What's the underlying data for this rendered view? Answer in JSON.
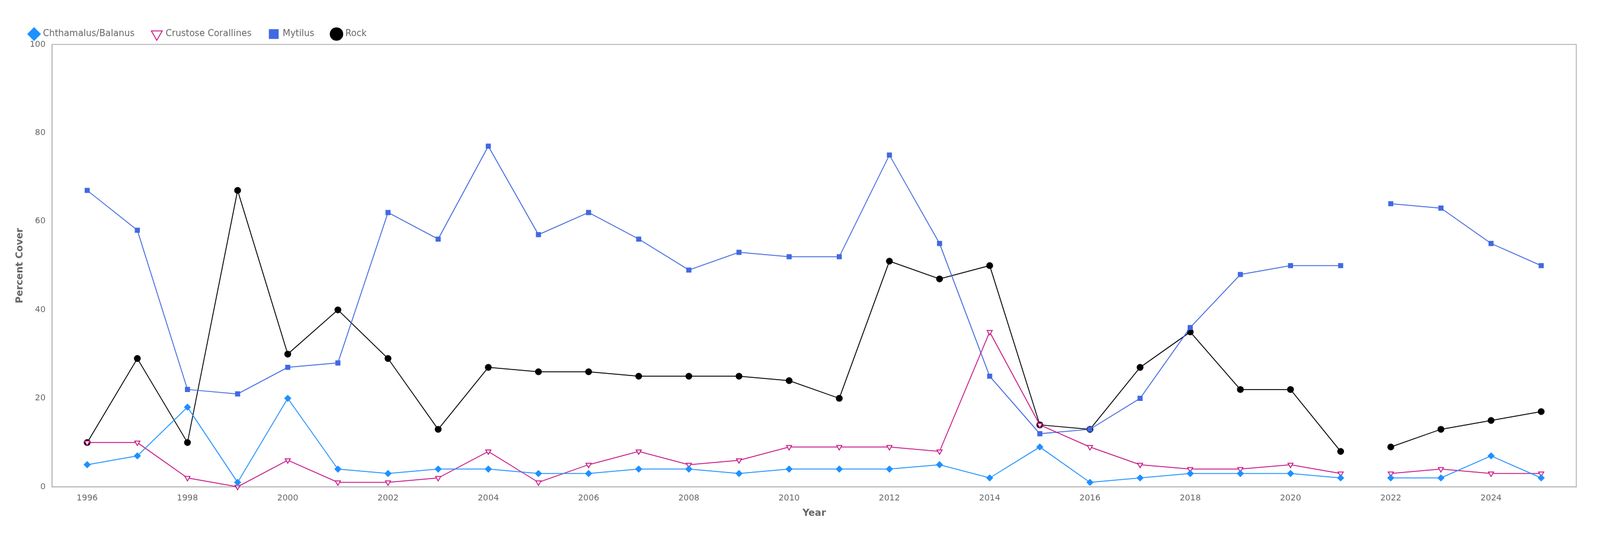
{
  "chart_data": {
    "type": "line",
    "xlabel": "Year",
    "ylabel": "Percent Cover",
    "x": [
      1996,
      1997,
      1998,
      1999,
      2000,
      2001,
      2002,
      2003,
      2004,
      2005,
      2006,
      2007,
      2008,
      2009,
      2010,
      2011,
      2012,
      2013,
      2014,
      2015,
      2016,
      2017,
      2018,
      2019,
      2020,
      2021,
      null,
      2022,
      2023,
      2024,
      2025
    ],
    "series": [
      {
        "name": "Chthamalus/Balanus",
        "color": "#1E90FF",
        "marker": "diamond",
        "values": [
          5,
          7,
          18,
          1,
          20,
          4,
          3,
          4,
          4,
          3,
          3,
          4,
          4,
          3,
          4,
          4,
          4,
          5,
          2,
          9,
          1,
          2,
          3,
          3,
          3,
          2,
          null,
          2,
          2,
          7,
          2
        ]
      },
      {
        "name": "Crustose Corallines",
        "color": "#C71585",
        "marker": "triangle_down_open",
        "values": [
          10,
          10,
          2,
          0,
          6,
          1,
          1,
          2,
          8,
          1,
          5,
          8,
          5,
          6,
          9,
          9,
          9,
          8,
          35,
          14,
          9,
          5,
          4,
          4,
          5,
          3,
          null,
          3,
          4,
          3,
          3
        ]
      },
      {
        "name": "Mytilus",
        "color": "#4169E1",
        "marker": "square",
        "values": [
          67,
          58,
          22,
          21,
          27,
          28,
          62,
          56,
          77,
          57,
          62,
          56,
          49,
          53,
          52,
          52,
          75,
          55,
          25,
          12,
          13,
          20,
          36,
          48,
          50,
          50,
          null,
          64,
          63,
          55,
          50
        ]
      },
      {
        "name": "Rock",
        "color": "#000000",
        "marker": "circle",
        "values": [
          10,
          29,
          10,
          67,
          30,
          40,
          29,
          13,
          27,
          26,
          26,
          25,
          25,
          25,
          24,
          20,
          51,
          47,
          50,
          14,
          13,
          27,
          35,
          22,
          22,
          8,
          null,
          9,
          13,
          15,
          17
        ]
      }
    ],
    "xlim": [
      1995.3,
      2025.7
    ],
    "xticks": [
      1996,
      1998,
      2000,
      2002,
      2004,
      2006,
      2008,
      2010,
      2012,
      2014,
      2016,
      2018,
      2020,
      2022,
      2024
    ],
    "ylim": [
      0,
      100
    ],
    "yticks": [
      0,
      20,
      40,
      60,
      80,
      100
    ],
    "grid": false,
    "legend": "upper left"
  }
}
